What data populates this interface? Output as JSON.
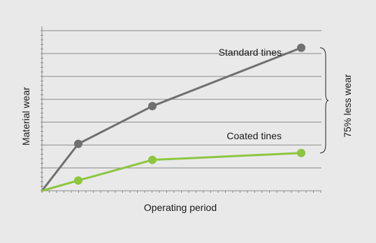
{
  "chart_data": {
    "type": "line",
    "xlabel": "Operating period",
    "ylabel": "Material wear",
    "x": [
      0,
      1,
      2,
      3
    ],
    "series": [
      {
        "name": "Standard tines",
        "values": [
          0,
          2.05,
          3.7,
          6.25
        ],
        "color": "#707070"
      },
      {
        "name": "Coated tines",
        "values": [
          0,
          0.45,
          1.35,
          1.65
        ],
        "color": "#8dc63f"
      }
    ],
    "ylim": [
      0,
      7
    ],
    "grid": true,
    "bracket_annotation": "75% less wear"
  }
}
